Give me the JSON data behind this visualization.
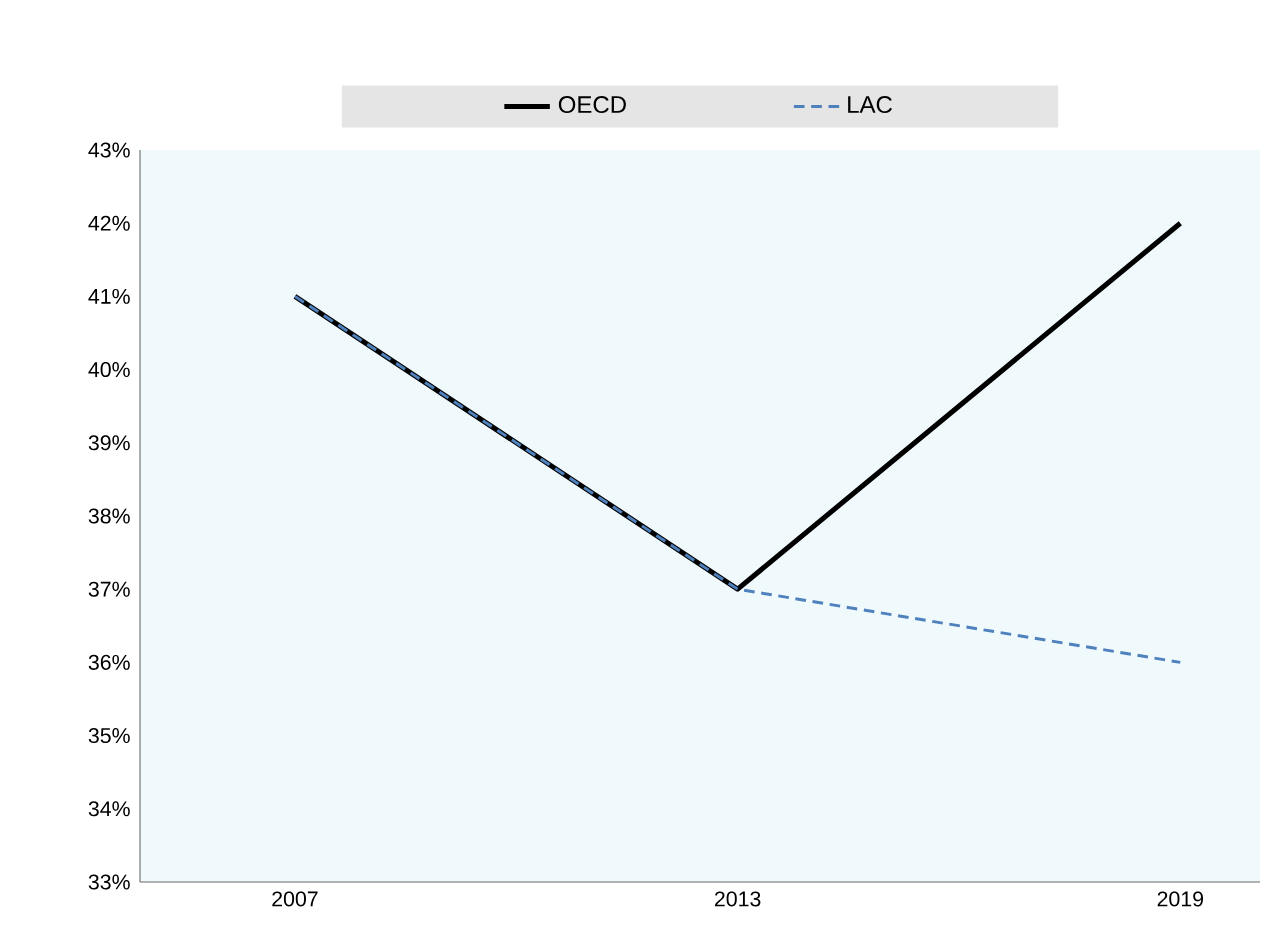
{
  "chart_data": {
    "type": "line",
    "categories": [
      "2007",
      "2013",
      "2019"
    ],
    "series": [
      {
        "name": "OECD",
        "color": "#000000",
        "line_style": "solid",
        "values": [
          41,
          37,
          42
        ]
      },
      {
        "name": "LAC",
        "color": "#4f81bd",
        "line_style": "dashed",
        "values": [
          41,
          37,
          36
        ]
      }
    ],
    "ylim": [
      33,
      43
    ],
    "yticks": [
      {
        "value": 33,
        "label": "33%"
      },
      {
        "value": 34,
        "label": "34%"
      },
      {
        "value": 35,
        "label": "35%"
      },
      {
        "value": 36,
        "label": "36%"
      },
      {
        "value": 37,
        "label": "37%"
      },
      {
        "value": 38,
        "label": "38%"
      },
      {
        "value": 39,
        "label": "39%"
      },
      {
        "value": 40,
        "label": "40%"
      },
      {
        "value": 41,
        "label": "41%"
      },
      {
        "value": 42,
        "label": "42%"
      },
      {
        "value": 43,
        "label": "43%"
      }
    ],
    "grid": false,
    "legend": "top",
    "marker": "none"
  }
}
